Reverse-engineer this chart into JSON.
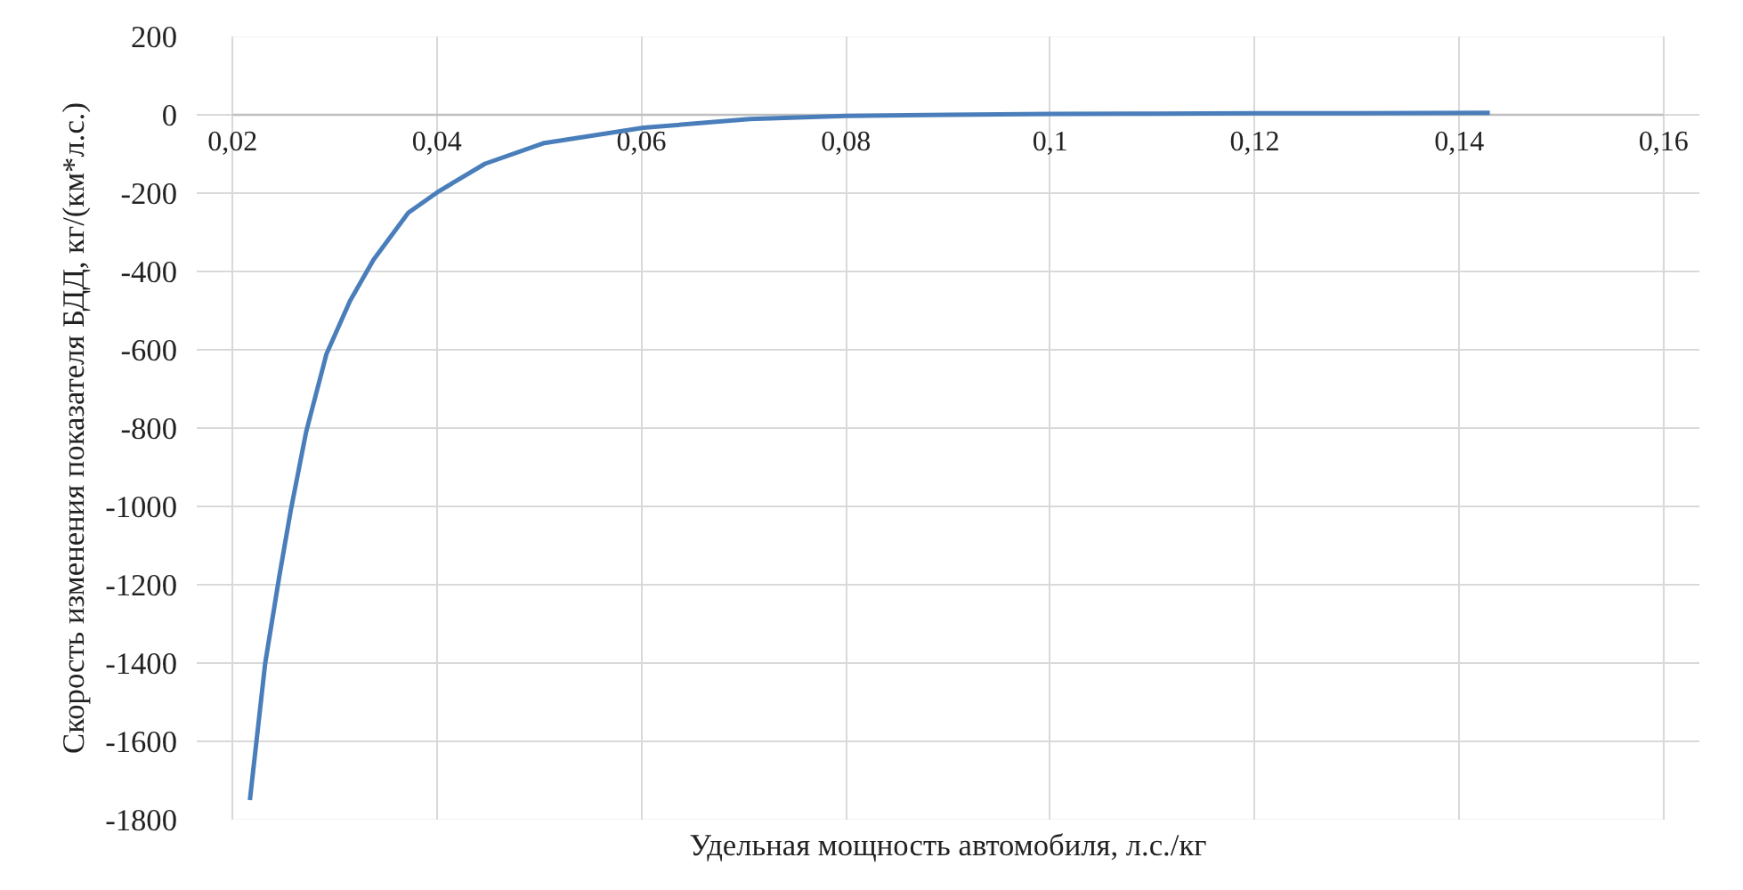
{
  "chart_data": {
    "type": "line",
    "xlabel": "Удельная мощность автомобиля, л.с./кг",
    "ylabel": "Скорость изменения показателя БДД, кг/(км*л.с.)",
    "x": [
      0.0217,
      0.0232,
      0.0246,
      0.0257,
      0.0272,
      0.0292,
      0.0315,
      0.0338,
      0.0372,
      0.0402,
      0.0447,
      0.0505,
      0.0602,
      0.0706,
      0.08,
      0.09,
      0.1,
      0.11,
      0.12,
      0.13,
      0.143
    ],
    "series": [
      {
        "color": "#4a7ebb",
        "values": [
          -1750,
          -1400,
          -1175,
          -1010,
          -810,
          -610,
          -475,
          -370,
          -250,
          -195,
          -125,
          -72,
          -33,
          -11,
          -3,
          0,
          2,
          3,
          4,
          4,
          5
        ]
      }
    ],
    "xlim": [
      0.02,
      0.16
    ],
    "xticks": [
      {
        "value": 0.02,
        "label": "0,02"
      },
      {
        "value": 0.04,
        "label": "0,04"
      },
      {
        "value": 0.06,
        "label": "0,06"
      },
      {
        "value": 0.08,
        "label": "0,08"
      },
      {
        "value": 0.1,
        "label": "0,1"
      },
      {
        "value": 0.12,
        "label": "0,12"
      },
      {
        "value": 0.14,
        "label": "0,14"
      },
      {
        "value": 0.16,
        "label": "0,16"
      }
    ],
    "ylim": [
      -1800,
      200
    ],
    "yticks": [
      -1800,
      -1600,
      -1400,
      -1200,
      -1000,
      -800,
      -600,
      -400,
      -200,
      0,
      200
    ],
    "grid": true,
    "marker": "none",
    "line_style": "solid"
  }
}
